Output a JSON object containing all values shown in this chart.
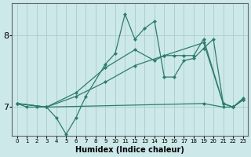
{
  "xlabel": "Humidex (Indice chaleur)",
  "bg_color": "#cce8e8",
  "grid_color": "#aacccc",
  "line_color": "#2e7d6e",
  "xlim": [
    -0.5,
    23.5
  ],
  "ylim": [
    6.6,
    8.45
  ],
  "yticks": [
    7,
    8
  ],
  "xticks": [
    0,
    1,
    2,
    3,
    4,
    5,
    6,
    7,
    8,
    9,
    10,
    11,
    12,
    13,
    14,
    15,
    16,
    17,
    18,
    19,
    20,
    21,
    22,
    23
  ],
  "series": [
    {
      "x": [
        0,
        1,
        2,
        3,
        19,
        21,
        22,
        23
      ],
      "y": [
        7.05,
        7.0,
        7.0,
        7.0,
        7.05,
        7.0,
        7.0,
        7.1
      ]
    },
    {
      "x": [
        0,
        3,
        6,
        9,
        12,
        15,
        19,
        21,
        22,
        23
      ],
      "y": [
        7.05,
        7.0,
        7.15,
        7.35,
        7.58,
        7.72,
        7.9,
        7.05,
        7.0,
        7.1
      ]
    },
    {
      "x": [
        0,
        3,
        6,
        9,
        12,
        14,
        15,
        16,
        17,
        18,
        19,
        21,
        22,
        23
      ],
      "y": [
        7.05,
        7.0,
        7.2,
        7.55,
        7.8,
        7.65,
        7.72,
        7.72,
        7.72,
        7.72,
        7.95,
        7.05,
        7.0,
        7.1
      ]
    },
    {
      "x": [
        0,
        3,
        4,
        5,
        6,
        7,
        9,
        10,
        11,
        12,
        13,
        14,
        15,
        16,
        17,
        18,
        19,
        20,
        21,
        22,
        23
      ],
      "y": [
        7.05,
        7.0,
        6.85,
        6.62,
        6.85,
        7.15,
        7.6,
        7.75,
        8.3,
        7.95,
        8.1,
        8.2,
        7.42,
        7.42,
        7.65,
        7.68,
        7.82,
        7.95,
        7.05,
        7.0,
        7.12
      ]
    }
  ]
}
